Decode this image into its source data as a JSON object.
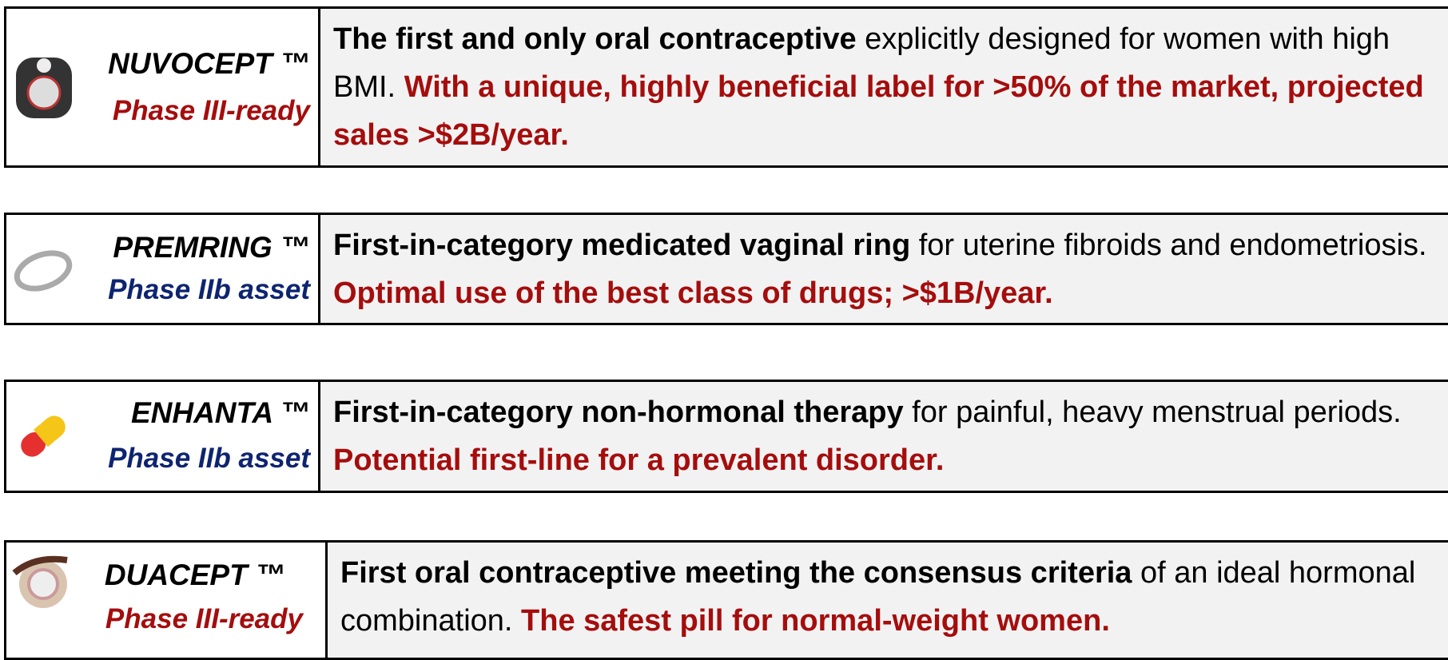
{
  "rows": [
    {
      "name": "NUVOCEPT ™",
      "phase": "Phase III-ready",
      "bold": "The first and only oral contraceptive",
      "text": " explicitly designed for women with high BMI. ",
      "highlight": "With a unique, highly beneficial label for >50% of the market, projected sales >$2B/year."
    },
    {
      "name": "PREMRING ™",
      "phase": "Phase IIb asset",
      "bold": "First-in-category medicated vaginal ring",
      "text": " for uterine fibroids and endometriosis. ",
      "highlight": "Optimal use of the best class of drugs; >$1B/year."
    },
    {
      "name": "ENHANTA ™",
      "phase": "Phase IIb asset",
      "bold": "First-in-category non-hormonal therapy",
      "text": " for painful, heavy menstrual periods. ",
      "highlight": "Potential first-line for a prevalent disorder."
    },
    {
      "name": "DUACEPT ™",
      "phase": "Phase III-ready",
      "bold": "First oral contraceptive meeting the consensus criteria",
      "text": " of an ideal hormonal combination. ",
      "highlight": "The safest pill for normal-weight women."
    }
  ]
}
